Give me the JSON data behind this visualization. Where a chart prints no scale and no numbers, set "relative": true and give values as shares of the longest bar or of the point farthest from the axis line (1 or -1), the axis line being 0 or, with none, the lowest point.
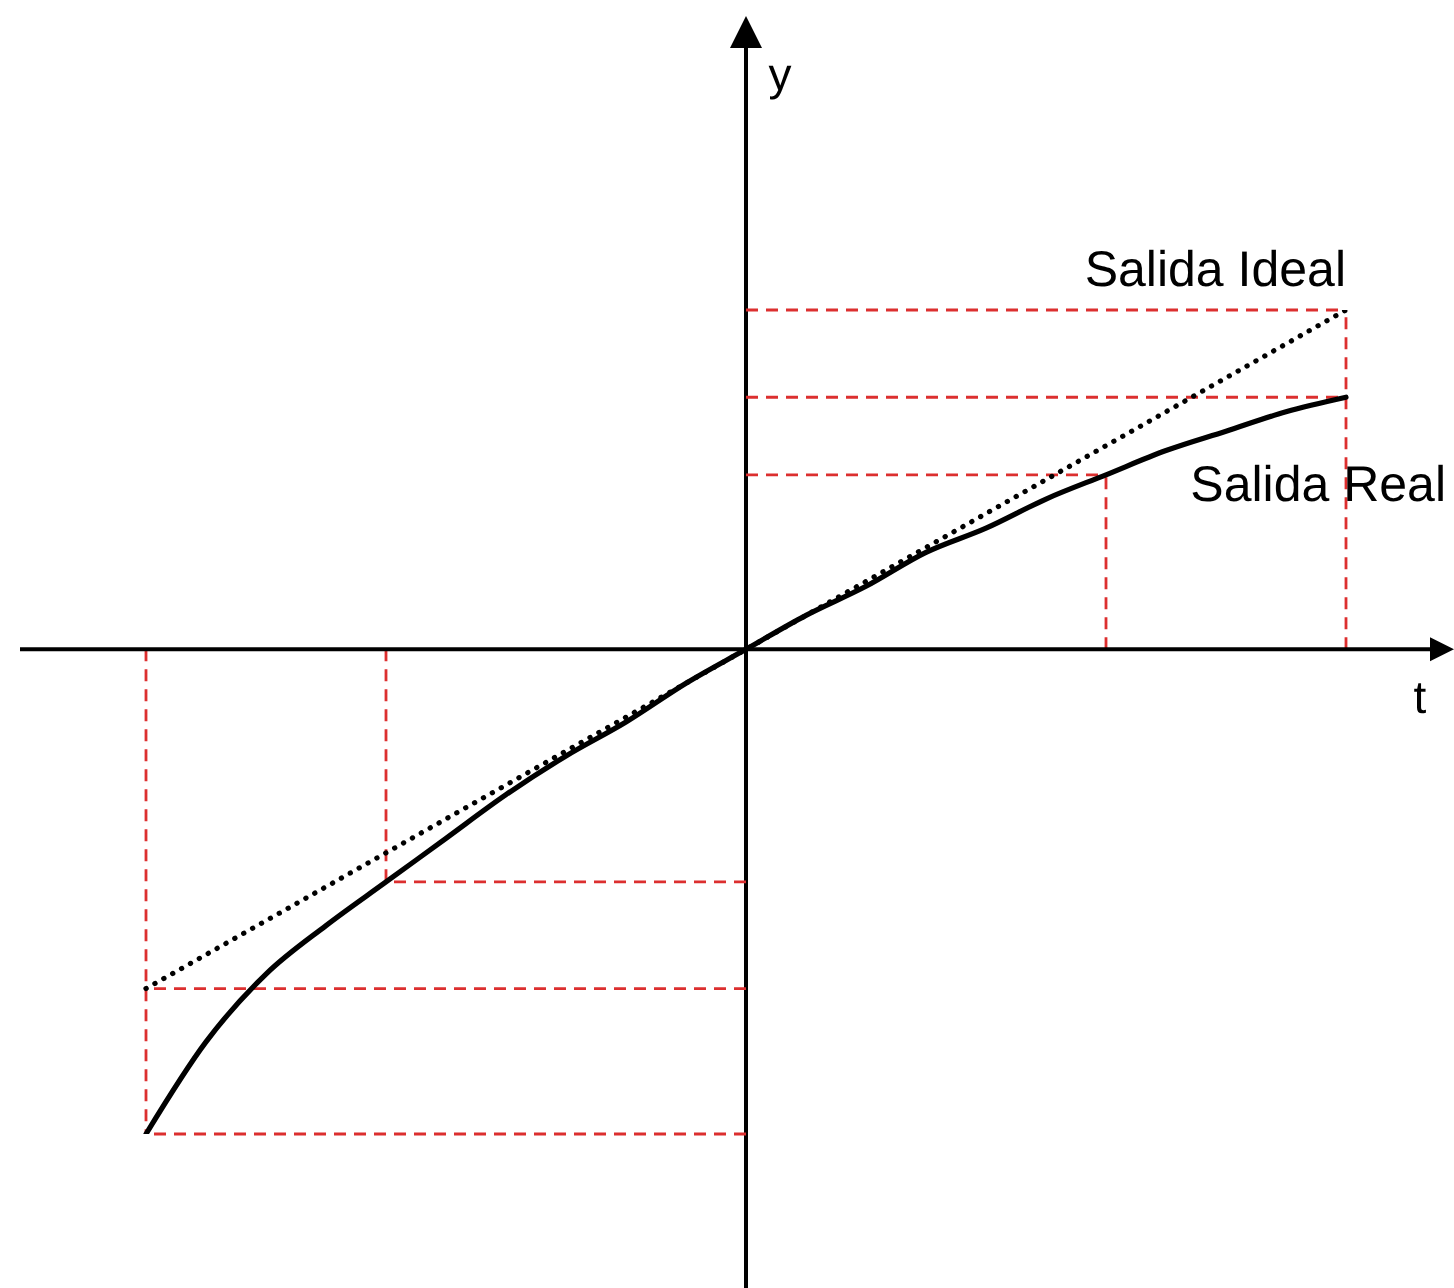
{
  "chart_data": {
    "type": "line",
    "relative": true,
    "xlabel": "t",
    "ylabel": "y",
    "marker": "none",
    "categories": [
      null,
      null,
      null,
      null,
      null,
      null,
      null,
      null,
      null,
      null,
      null,
      null,
      null,
      null,
      null,
      null,
      null,
      null,
      null,
      null,
      null
    ],
    "series": [
      {
        "name": "Salida Ideal",
        "color": "#000000",
        "line_style": "dotted",
        "values": [
          -0.7,
          -0.63,
          -0.56,
          -0.49,
          -0.42,
          -0.35,
          -0.28,
          -0.21,
          -0.14,
          -0.07,
          0,
          0.07,
          0.14,
          0.21,
          0.28,
          0.35,
          0.42,
          0.49,
          0.56,
          0.63,
          0.7
        ]
      },
      {
        "name": "Salida Real",
        "color": "#000000",
        "line_style": "solid",
        "values": [
          -1.0,
          -0.81,
          -0.67,
          -0.57,
          -0.48,
          -0.39,
          -0.3,
          -0.22,
          -0.15,
          -0.07,
          0,
          0.07,
          0.13,
          0.2,
          0.25,
          0.31,
          0.36,
          0.41,
          0.45,
          0.49,
          0.52
        ]
      }
    ],
    "ref_lines": [
      {
        "axis": "y",
        "value": 0.7,
        "color": "#dc2f2f",
        "line_style": "dashed"
      },
      {
        "axis": "y",
        "value": 0.52,
        "color": "#dc2f2f",
        "line_style": "dashed"
      },
      {
        "axis": "y",
        "value": 0.36,
        "color": "#dc2f2f",
        "line_style": "dashed"
      },
      {
        "axis": "y",
        "value": -0.48,
        "color": "#dc2f2f",
        "line_style": "dashed"
      },
      {
        "axis": "y",
        "value": -0.7,
        "color": "#dc2f2f",
        "line_style": "dashed"
      },
      {
        "axis": "y",
        "value": -1.0,
        "color": "#dc2f2f",
        "line_style": "dashed"
      }
    ]
  }
}
